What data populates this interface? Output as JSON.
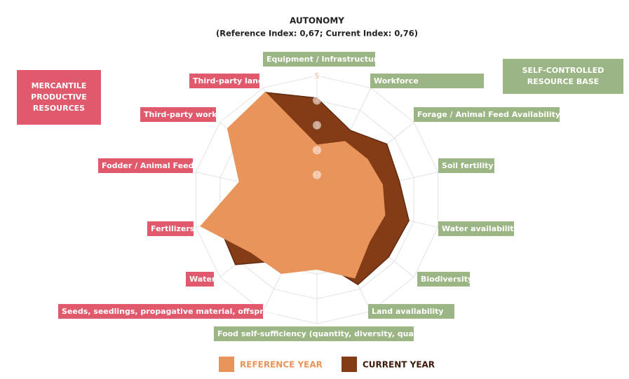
{
  "chart_data": {
    "type": "radar",
    "title": "AUTONOMY",
    "subtitle": "(Reference Index: 0,67; Current Index: 0,76)",
    "categories": [
      "Equipment / Infrastructure",
      "Workforce",
      "Forage / Animal Feed Availability",
      "Soil fertility",
      "Water availability",
      "Biodiversity",
      "Land availability",
      "Food self-sufficiency (quantity, diversity, quality)",
      "Seeds, seedlings, propagative material, offspring",
      "Water",
      "Fertilizers",
      "Fodder / Animal Feed",
      "Third-party work",
      "Third-party land"
    ],
    "category_colors": [
      "#9bb584",
      "#9bb584",
      "#9bb584",
      "#9bb584",
      "#9bb584",
      "#9bb584",
      "#9bb584",
      "#9bb584",
      "#e0596c",
      "#e0596c",
      "#e0596c",
      "#e0596c",
      "#e0596c",
      "#e0596c"
    ],
    "groups": [
      {
        "lines": [
          "MERCANTILE",
          "PRODUCTIVE",
          "RESOURCES"
        ],
        "color": "#e0596c"
      },
      {
        "lines": [
          "SELF-CONTROLLED",
          "RESOURCE BASE"
        ],
        "color": "#9bb584"
      }
    ],
    "series": [
      {
        "name": "CURRENT YEAR",
        "color": "#843c17",
        "values": [
          4.1,
          3.1,
          3.6,
          3.4,
          3.8,
          3.7,
          3.8,
          2.4,
          2.7,
          4.2,
          4.1,
          3.0,
          4.1,
          4.8
        ]
      },
      {
        "name": "REFERENCE YEAR",
        "color": "#e9945a",
        "values": [
          2.2,
          2.6,
          2.6,
          2.7,
          2.8,
          2.7,
          3.5,
          2.8,
          3.3,
          3.4,
          4.8,
          3.2,
          4.6,
          4.8
        ]
      }
    ],
    "rlim": [
      0,
      5
    ],
    "rticks": [
      1,
      2,
      3,
      4,
      5
    ],
    "grid": true
  }
}
